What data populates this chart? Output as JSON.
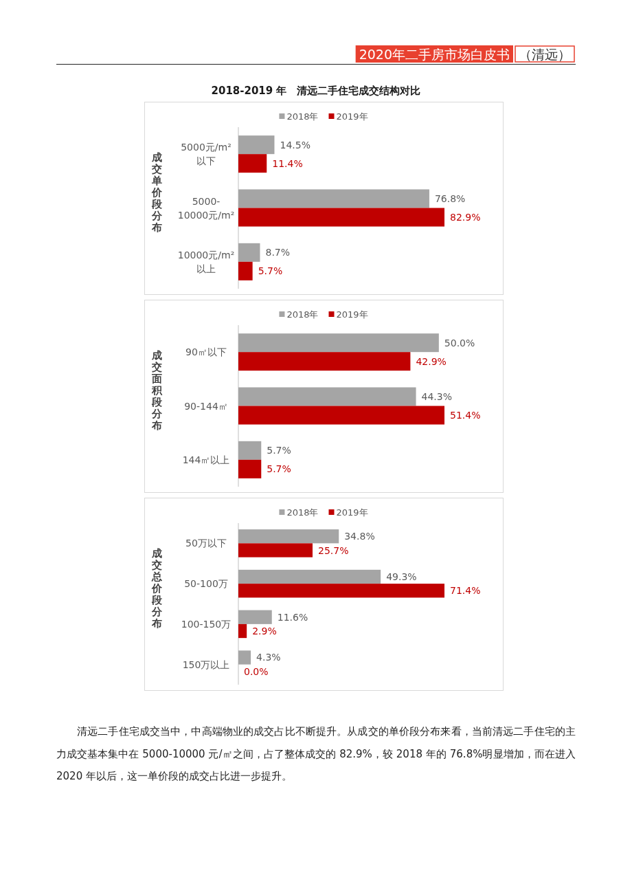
{
  "chart_data": [
    {
      "type": "bar",
      "orientation": "horizontal",
      "title": "2018-2019 年　清远二手住宅成交结构对比",
      "ylabel": "成交单价段分布",
      "legend": "top",
      "categories": [
        "5000元/m²\n以下",
        "5000-\n10000元/m²",
        "10000元/m²\n以上"
      ],
      "series": [
        {
          "name": "2018年",
          "color": "#a5a5a5",
          "values": [
            14.5,
            76.8,
            8.7
          ],
          "value_labels": [
            "14.5%",
            "76.8%",
            "8.7%"
          ]
        },
        {
          "name": "2019年",
          "color": "#c00000",
          "values": [
            11.4,
            82.9,
            5.7
          ],
          "value_labels": [
            "11.4%",
            "82.9%",
            "5.7%"
          ]
        }
      ],
      "annotations": [
        "2020年二手房市场白皮书",
        "（清远）"
      ]
    },
    {
      "type": "bar",
      "orientation": "horizontal",
      "ylabel": "成交面积段分布",
      "legend": "top",
      "categories": [
        "90㎡以下",
        "90-144㎡",
        "144㎡以上"
      ],
      "series": [
        {
          "name": "2018年",
          "color": "#a5a5a5",
          "values": [
            50.0,
            44.3,
            5.7
          ],
          "value_labels": [
            "50.0%",
            "44.3%",
            "5.7%"
          ]
        },
        {
          "name": "2019年",
          "color": "#c00000",
          "values": [
            42.9,
            51.4,
            5.7
          ],
          "value_labels": [
            "42.9%",
            "51.4%",
            "5.7%"
          ]
        }
      ]
    },
    {
      "type": "bar",
      "orientation": "horizontal",
      "ylabel": "成交总价段分布",
      "legend": "top",
      "categories": [
        "50万以下",
        "50-100万",
        "100-150万",
        "150万以上"
      ],
      "series": [
        {
          "name": "2018年",
          "color": "#a5a5a5",
          "values": [
            34.8,
            49.3,
            11.6,
            4.3
          ],
          "value_labels": [
            "34.8%",
            "49.3%",
            "11.6%",
            "4.3%"
          ]
        },
        {
          "name": "2019年",
          "color": "#c00000",
          "values": [
            25.7,
            71.4,
            2.9,
            0.0
          ],
          "value_labels": [
            "25.7%",
            "71.4%",
            "2.9%",
            "0.0%"
          ]
        }
      ],
      "annotations": [
        "清远二手住宅成交当中，中高端物业的成交占比不断提升。从成交的单价段分布来看，当前清远二手住宅的主力成交基本集中在 5000-10000 元/㎡之间，占了整体成交的 82.9%，较 2018 年的 76.8%明显增加，而在进入 2020 年以后，这一单价段的成交占比进一步提升。"
      ]
    }
  ]
}
